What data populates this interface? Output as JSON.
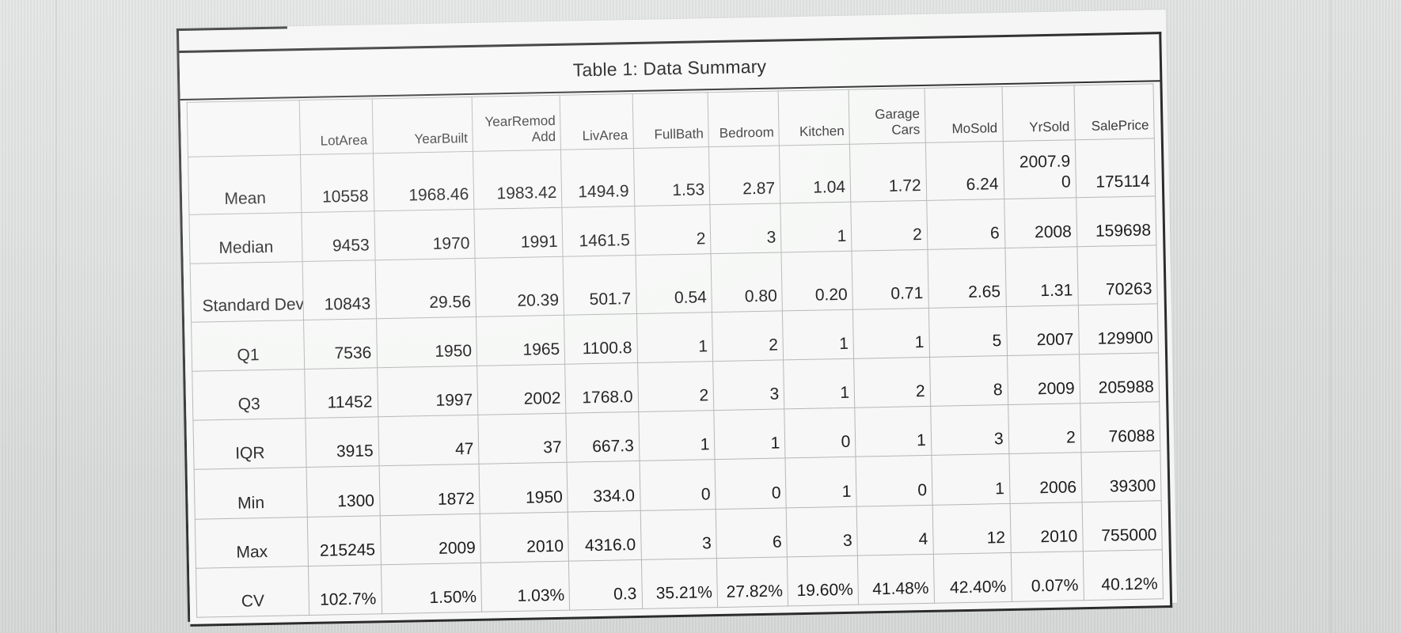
{
  "caption": "Table 1: Data Summary",
  "columns": [
    "",
    "LotArea",
    "YearBuilt",
    "YearRemod Add",
    "LivArea",
    "FullBath",
    "Bedroom",
    "Kitchen",
    "Garage Cars",
    "MoSold",
    "YrSold",
    "SalePrice"
  ],
  "rows": [
    {
      "label": "Mean",
      "values": [
        "10558",
        "1968.46",
        "1983.42",
        "1494.9",
        "1.53",
        "2.87",
        "1.04",
        "1.72",
        "6.24",
        "2007.9 0",
        "175114"
      ]
    },
    {
      "label": "Median",
      "values": [
        "9453",
        "1970",
        "1991",
        "1461.5",
        "2",
        "3",
        "1",
        "2",
        "6",
        "2008",
        "159698"
      ]
    },
    {
      "label": "Standard Deviation",
      "values": [
        "10843",
        "29.56",
        "20.39",
        "501.7",
        "0.54",
        "0.80",
        "0.20",
        "0.71",
        "2.65",
        "1.31",
        "70263"
      ]
    },
    {
      "label": "Q1",
      "values": [
        "7536",
        "1950",
        "1965",
        "1100.8",
        "1",
        "2",
        "1",
        "1",
        "5",
        "2007",
        "129900"
      ]
    },
    {
      "label": "Q3",
      "values": [
        "11452",
        "1997",
        "2002",
        "1768.0",
        "2",
        "3",
        "1",
        "2",
        "8",
        "2009",
        "205988"
      ]
    },
    {
      "label": "IQR",
      "values": [
        "3915",
        "47",
        "37",
        "667.3",
        "1",
        "1",
        "0",
        "1",
        "3",
        "2",
        "76088"
      ]
    },
    {
      "label": "Min",
      "values": [
        "1300",
        "1872",
        "1950",
        "334.0",
        "0",
        "0",
        "1",
        "0",
        "1",
        "2006",
        "39300"
      ]
    },
    {
      "label": "Max",
      "values": [
        "215245",
        "2009",
        "2010",
        "4316.0",
        "3",
        "6",
        "3",
        "4",
        "12",
        "2010",
        "755000"
      ]
    },
    {
      "label": "CV",
      "values": [
        "102.7%",
        "1.50%",
        "1.03%",
        "0.3",
        "35.21%",
        "27.82%",
        "19.60%",
        "41.48%",
        "42.40%",
        "0.07%",
        "40.12%"
      ]
    }
  ]
}
